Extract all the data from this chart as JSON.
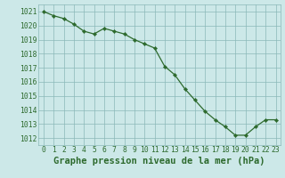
{
  "x": [
    0,
    1,
    2,
    3,
    4,
    5,
    6,
    7,
    8,
    9,
    10,
    11,
    12,
    13,
    14,
    15,
    16,
    17,
    18,
    19,
    20,
    21,
    22,
    23
  ],
  "y": [
    1021.0,
    1020.7,
    1020.5,
    1020.1,
    1019.6,
    1019.4,
    1019.8,
    1019.6,
    1019.4,
    1019.0,
    1018.7,
    1018.4,
    1017.1,
    1016.5,
    1015.5,
    1014.7,
    1013.9,
    1013.3,
    1012.8,
    1012.2,
    1012.2,
    1012.8,
    1013.3,
    1013.3
  ],
  "line_color": "#2d6a2d",
  "marker": "D",
  "marker_size": 2.2,
  "bg_color": "#cce8e8",
  "grid_color": "#8ab8b8",
  "title": "Graphe pression niveau de la mer (hPa)",
  "ylim": [
    1011.5,
    1021.5
  ],
  "xlim": [
    -0.5,
    23.5
  ],
  "yticks": [
    1012,
    1013,
    1014,
    1015,
    1016,
    1017,
    1018,
    1019,
    1020,
    1021
  ],
  "xticks": [
    0,
    1,
    2,
    3,
    4,
    5,
    6,
    7,
    8,
    9,
    10,
    11,
    12,
    13,
    14,
    15,
    16,
    17,
    18,
    19,
    20,
    21,
    22,
    23
  ],
  "title_color": "#2d6a2d",
  "tick_color": "#2d6a2d",
  "title_fontsize": 7.5,
  "tick_fontsize": 5.8,
  "linewidth": 0.9
}
